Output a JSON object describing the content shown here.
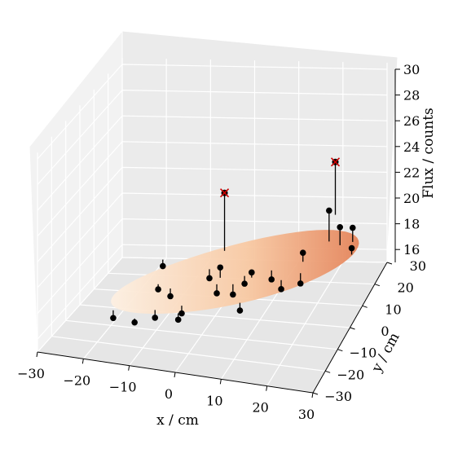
{
  "chart_data": {
    "type": "scatter",
    "title": "",
    "xlabel": "x / cm",
    "ylabel": "y / cm",
    "zlabel": "Flux / counts",
    "xlim": [
      -30,
      30
    ],
    "ylim": [
      -30,
      30
    ],
    "zlim": [
      15,
      30
    ],
    "x_ticks": [
      "−30",
      "−20",
      "−10",
      "0",
      "10",
      "20",
      "30"
    ],
    "y_ticks": [
      "−30",
      "−20",
      "−10",
      "0",
      "10",
      "20",
      "30"
    ],
    "z_ticks": [
      "16",
      "18",
      "20",
      "22",
      "24",
      "26",
      "28",
      "30"
    ],
    "grid": true,
    "surface": "fitted elliptical Gaussian (orange gradient)",
    "points": [
      {
        "x": -9,
        "y": -3,
        "z": 16.7,
        "fit": 17.3
      },
      {
        "x": -5,
        "y": -8,
        "z": 16.2,
        "fit": 16.8
      },
      {
        "x": -3,
        "y": 6,
        "z": 17.0,
        "fit": 17.7
      },
      {
        "x": 0,
        "y": 4,
        "z": 18.2,
        "fit": 17.4
      },
      {
        "x": 1,
        "y": -2,
        "z": 17.1,
        "fit": 17.8
      },
      {
        "x": 4,
        "y": 0,
        "z": 16.8,
        "fit": 17.6
      },
      {
        "x": 6,
        "y": 2,
        "z": 17.4,
        "fit": 18.0
      },
      {
        "x": 7,
        "y": 4,
        "z": 18.0,
        "fit": 17.6
      },
      {
        "x": 7,
        "y": -5,
        "z": 16.4,
        "fit": 17.0
      },
      {
        "x": 12,
        "y": 2,
        "z": 17.9,
        "fit": 18.6
      },
      {
        "x": 15,
        "y": -1,
        "z": 17.7,
        "fit": 18.4
      },
      {
        "x": 19,
        "y": 0,
        "z": 18.1,
        "fit": 18.9
      },
      {
        "x": 17,
        "y": 9,
        "z": 19.0,
        "fit": 18.3
      },
      {
        "x": 20,
        "y": 24,
        "z": 23.7,
        "fit": 19.6
      },
      {
        "x": 25,
        "y": 10,
        "z": 21.0,
        "fit": 19.6
      },
      {
        "x": 27,
        "y": 13,
        "z": 20.5,
        "fit": 19.4
      },
      {
        "x": 22,
        "y": 12,
        "z": 21.9,
        "fit": 19.5
      },
      {
        "x": 29,
        "y": 5,
        "z": 20.3,
        "fit": 19.8
      },
      {
        "x": -18,
        "y": -15,
        "z": 16.3,
        "fit": 16.9
      },
      {
        "x": -13,
        "y": -16,
        "z": 16.3,
        "fit": 16.6
      },
      {
        "x": -12,
        "y": -2,
        "z": 17.0,
        "fit": 17.4
      },
      {
        "x": -10,
        "y": -11,
        "z": 16.1,
        "fit": 16.7
      },
      {
        "x": -2,
        "y": 14,
        "z": 22.5,
        "fit": 18.0
      },
      {
        "x": -4,
        "y": -14,
        "z": 16.6,
        "fit": 17.1
      },
      {
        "x": -14,
        "y": 8,
        "z": 17.4,
        "fit": 17.9
      }
    ],
    "outliers": [
      {
        "x": -2,
        "y": 14,
        "z": 22.5,
        "marker": "red x"
      },
      {
        "x": 20,
        "y": 24,
        "z": 23.7,
        "marker": "red x"
      }
    ],
    "colors": {
      "point": "#000000",
      "outlier": "#cc0000",
      "surface_light": "#fde7d2",
      "surface_dark": "#e8845a"
    }
  }
}
